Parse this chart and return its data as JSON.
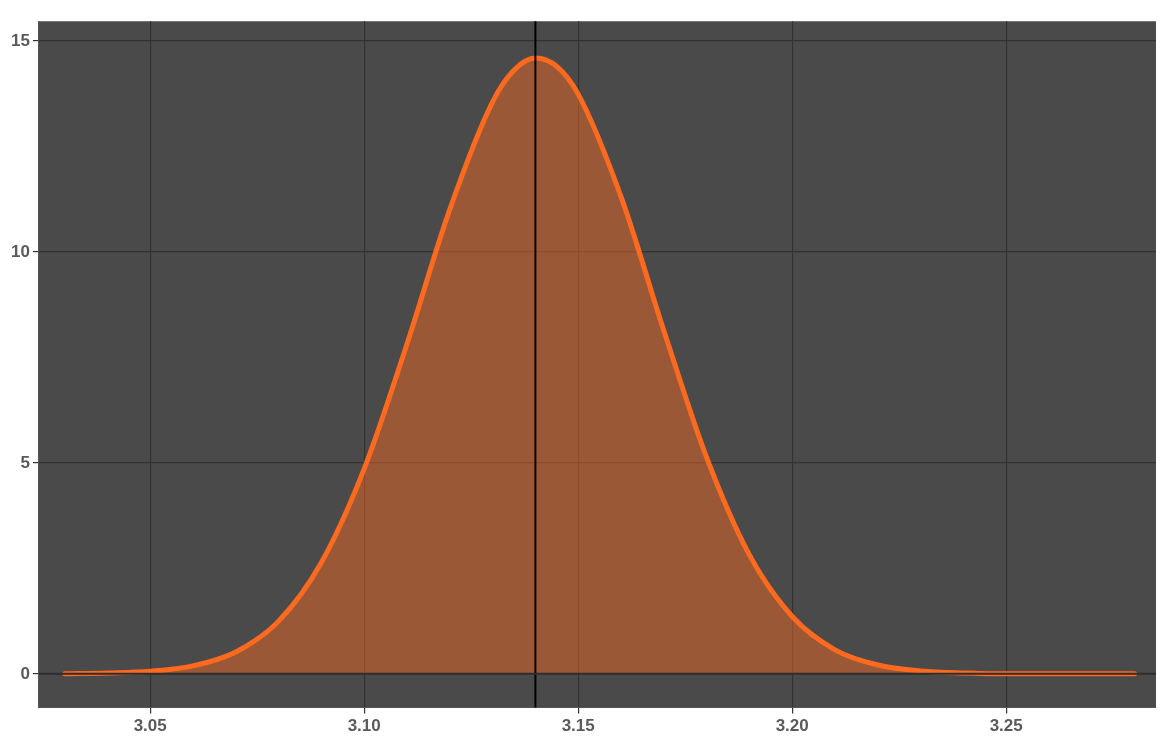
{
  "chart_data": {
    "type": "area",
    "x": [
      3.03,
      3.04,
      3.05,
      3.06,
      3.07,
      3.08,
      3.09,
      3.1,
      3.11,
      3.12,
      3.13,
      3.135,
      3.14,
      3.145,
      3.15,
      3.16,
      3.17,
      3.18,
      3.19,
      3.2,
      3.21,
      3.22,
      3.23,
      3.24,
      3.25,
      3.26,
      3.27,
      3.28
    ],
    "series": [
      {
        "color": "#ff6a1f",
        "values": [
          0,
          0.02,
          0.06,
          0.19,
          0.52,
          1.25,
          2.64,
          4.86,
          7.82,
          11.01,
          13.56,
          14.31,
          14.6,
          14.4,
          13.74,
          11.31,
          8.14,
          5.13,
          2.82,
          1.36,
          0.57,
          0.21,
          0.07,
          0.02,
          0,
          0,
          0,
          0
        ]
      }
    ],
    "xlim": [
      3.024,
      3.285
    ],
    "ylim": [
      -0.8,
      15.47
    ],
    "xticks": [
      3.05,
      {
        "value": 3.1,
        "label": "3.10"
      },
      3.15,
      {
        "value": 3.2,
        "label": "3.20"
      },
      3.25
    ],
    "yticks": [
      0,
      5,
      10,
      15
    ],
    "grid": true,
    "legend": false,
    "marker": "none",
    "line_style": "solid",
    "ref_lines": [
      {
        "axis": "x",
        "value": 3.14,
        "color": "#000000"
      },
      {
        "axis": "y",
        "value": 0,
        "color": "#2e2e2e"
      }
    ]
  }
}
